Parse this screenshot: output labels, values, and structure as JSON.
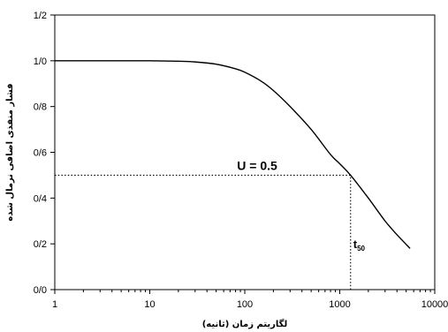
{
  "chart_data": {
    "type": "line",
    "title": "",
    "xlabel": "لگاریتم زمان (ثانیه)",
    "ylabel": "فشار منفذی اضافی نرمال شده",
    "xscale": "log",
    "xlim": [
      1,
      10000
    ],
    "ylim": [
      0,
      1.2
    ],
    "x_tick_labels": [
      "1",
      "10",
      "100",
      "1000",
      "10000"
    ],
    "y_tick_labels": [
      "0/0",
      "0/2",
      "0/4",
      "0/6",
      "0/8",
      "1/0",
      "1/2"
    ],
    "grid": false,
    "series": [
      {
        "x": [
          1,
          3,
          10,
          20,
          30,
          50,
          80,
          100,
          150,
          200,
          300,
          500,
          800,
          1000,
          1300,
          2000,
          3000,
          4000,
          5500
        ],
        "y": [
          1.0,
          1.0,
          1.0,
          0.998,
          0.995,
          0.985,
          0.965,
          0.95,
          0.91,
          0.87,
          0.8,
          0.7,
          0.59,
          0.55,
          0.5,
          0.4,
          0.3,
          0.24,
          0.18
        ]
      }
    ],
    "annotations": [
      {
        "text": "U = 0.5",
        "x": 300,
        "y": 0.5
      },
      {
        "text": "t",
        "subscript": "50",
        "x": 1300,
        "y": 0.2
      }
    ],
    "reference_lines": [
      {
        "orientation": "horizontal",
        "y": 0.5,
        "from_x": 1,
        "to_x": 1300,
        "style": "dotted"
      },
      {
        "orientation": "vertical",
        "x": 1300,
        "from_y": 0,
        "to_y": 0.5,
        "style": "dotted"
      }
    ]
  }
}
